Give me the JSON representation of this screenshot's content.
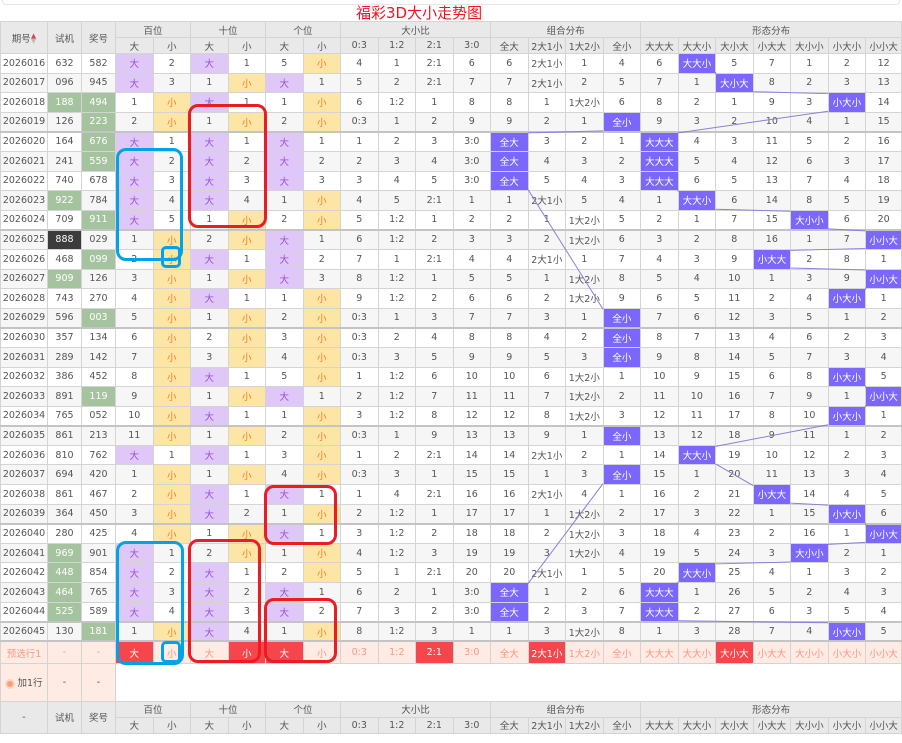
{
  "title": "福彩3D大小走势图",
  "header": {
    "period": "期号",
    "shiji": "试机",
    "jianghao": "奖号",
    "groups": [
      "百位",
      "十位",
      "个位",
      "大小比",
      "组合分布",
      "形态分布"
    ],
    "sub": [
      "大",
      "小",
      "大",
      "小",
      "大",
      "小",
      "0:3",
      "1:2",
      "2:1",
      "3:0",
      "全大",
      "2大1小",
      "1大2小",
      "全小",
      "大大大",
      "大大小",
      "大小大",
      "小大大",
      "大小小",
      "小大小",
      "小小大"
    ]
  },
  "footer_header": {
    "period": "-",
    "shiji": "试机",
    "jianghao": "奖号"
  },
  "colors": {
    "big": "#dfc7f8",
    "small": "#fde5a5",
    "hit": "#7b67fb",
    "pair": "#a6c39f",
    "triple": "#3c3c3c",
    "selected": "#f5474b",
    "title": "#f0141e"
  },
  "rows": [
    {
      "period": "2026016",
      "shiji": "632",
      "jianghao": "582",
      "shiji_mark": "",
      "jianghao_mark": "",
      "cells": [
        "大",
        "2",
        "大",
        "1",
        "5",
        "小",
        "4",
        "1",
        "2:1",
        "6",
        "6",
        "2大1小",
        "1",
        "4",
        "6",
        "大大小",
        "5",
        "7",
        "1",
        "2",
        "12"
      ]
    },
    {
      "period": "2026017",
      "shiji": "096",
      "jianghao": "945",
      "shiji_mark": "",
      "jianghao_mark": "",
      "cells": [
        "大",
        "3",
        "1",
        "小",
        "大",
        "1",
        "5",
        "2",
        "2:1",
        "7",
        "7",
        "2大1小",
        "2",
        "5",
        "7",
        "1",
        "大小大",
        "8",
        "2",
        "3",
        "13"
      ]
    },
    {
      "period": "2026018",
      "shiji": "188",
      "jianghao": "494",
      "shiji_mark": "pair",
      "jianghao_mark": "pair",
      "cells": [
        "1",
        "小",
        "大",
        "1",
        "1",
        "小",
        "6",
        "1:2",
        "1",
        "8",
        "8",
        "1",
        "1大2小",
        "6",
        "8",
        "2",
        "1",
        "9",
        "3",
        "小大小",
        "14"
      ]
    },
    {
      "period": "2026019",
      "shiji": "126",
      "jianghao": "223",
      "shiji_mark": "",
      "jianghao_mark": "pair",
      "cells": [
        "2",
        "小",
        "1",
        "小",
        "2",
        "小",
        "0:3",
        "1",
        "2",
        "9",
        "9",
        "2",
        "1",
        "全小",
        "9",
        "3",
        "2",
        "10",
        "4",
        "1",
        "15"
      ]
    },
    {
      "period": "2026020",
      "shiji": "164",
      "jianghao": "676",
      "shiji_mark": "",
      "jianghao_mark": "pair",
      "cells": [
        "大",
        "1",
        "大",
        "1",
        "大",
        "1",
        "1",
        "2",
        "3",
        "3:0",
        "全大",
        "3",
        "2",
        "1",
        "大大大",
        "4",
        "3",
        "11",
        "5",
        "2",
        "16"
      ]
    },
    {
      "period": "2026021",
      "shiji": "241",
      "jianghao": "559",
      "shiji_mark": "",
      "jianghao_mark": "pair",
      "cells": [
        "大",
        "2",
        "大",
        "2",
        "大",
        "2",
        "2",
        "3",
        "4",
        "3:0",
        "全大",
        "4",
        "3",
        "2",
        "大大大",
        "5",
        "4",
        "12",
        "6",
        "3",
        "17"
      ]
    },
    {
      "period": "2026022",
      "shiji": "740",
      "jianghao": "678",
      "shiji_mark": "",
      "jianghao_mark": "",
      "cells": [
        "大",
        "3",
        "大",
        "3",
        "大",
        "3",
        "3",
        "4",
        "5",
        "3:0",
        "全大",
        "5",
        "4",
        "3",
        "大大大",
        "6",
        "5",
        "13",
        "7",
        "4",
        "18"
      ]
    },
    {
      "period": "2026023",
      "shiji": "922",
      "jianghao": "784",
      "shiji_mark": "pair",
      "jianghao_mark": "",
      "cells": [
        "大",
        "4",
        "大",
        "4",
        "1",
        "小",
        "4",
        "5",
        "2:1",
        "1",
        "1",
        "2大1小",
        "5",
        "4",
        "1",
        "大大小",
        "6",
        "14",
        "8",
        "5",
        "19"
      ]
    },
    {
      "period": "2026024",
      "shiji": "709",
      "jianghao": "911",
      "shiji_mark": "",
      "jianghao_mark": "pair",
      "cells": [
        "大",
        "5",
        "1",
        "小",
        "2",
        "小",
        "5",
        "1:2",
        "1",
        "2",
        "2",
        "1",
        "1大2小",
        "5",
        "2",
        "1",
        "7",
        "15",
        "大小小",
        "6",
        "20"
      ]
    },
    {
      "period": "2026025",
      "shiji": "888",
      "jianghao": "029",
      "shiji_mark": "triple",
      "jianghao_mark": "",
      "cells": [
        "1",
        "小",
        "2",
        "小",
        "大",
        "1",
        "6",
        "1:2",
        "2",
        "3",
        "3",
        "2",
        "1大2小",
        "6",
        "3",
        "2",
        "8",
        "16",
        "1",
        "7",
        "小小大"
      ]
    },
    {
      "period": "2026026",
      "shiji": "468",
      "jianghao": "099",
      "shiji_mark": "",
      "jianghao_mark": "pair",
      "cells": [
        "2",
        "小",
        "大",
        "1",
        "大",
        "2",
        "7",
        "1",
        "2:1",
        "4",
        "4",
        "2大1小",
        "1",
        "7",
        "4",
        "3",
        "9",
        "小大大",
        "2",
        "8",
        "1"
      ]
    },
    {
      "period": "2026027",
      "shiji": "909",
      "jianghao": "126",
      "shiji_mark": "pair",
      "jianghao_mark": "",
      "cells": [
        "3",
        "小",
        "1",
        "小",
        "大",
        "3",
        "8",
        "1:2",
        "1",
        "5",
        "5",
        "1",
        "1大2小",
        "8",
        "5",
        "4",
        "10",
        "1",
        "3",
        "9",
        "小小大"
      ]
    },
    {
      "period": "2026028",
      "shiji": "743",
      "jianghao": "270",
      "shiji_mark": "",
      "jianghao_mark": "",
      "cells": [
        "4",
        "小",
        "大",
        "1",
        "1",
        "小",
        "9",
        "1:2",
        "2",
        "6",
        "6",
        "2",
        "1大2小",
        "9",
        "6",
        "5",
        "11",
        "2",
        "4",
        "小大小",
        "1"
      ]
    },
    {
      "period": "2026029",
      "shiji": "596",
      "jianghao": "003",
      "shiji_mark": "",
      "jianghao_mark": "pair",
      "cells": [
        "5",
        "小",
        "1",
        "小",
        "2",
        "小",
        "0:3",
        "1",
        "3",
        "7",
        "7",
        "3",
        "1",
        "全小",
        "7",
        "6",
        "12",
        "3",
        "5",
        "1",
        "2"
      ]
    },
    {
      "period": "2026030",
      "shiji": "357",
      "jianghao": "134",
      "shiji_mark": "",
      "jianghao_mark": "",
      "cells": [
        "6",
        "小",
        "2",
        "小",
        "3",
        "小",
        "0:3",
        "2",
        "4",
        "8",
        "8",
        "4",
        "2",
        "全小",
        "8",
        "7",
        "13",
        "4",
        "6",
        "2",
        "3"
      ]
    },
    {
      "period": "2026031",
      "shiji": "289",
      "jianghao": "142",
      "shiji_mark": "",
      "jianghao_mark": "",
      "cells": [
        "7",
        "小",
        "3",
        "小",
        "4",
        "小",
        "0:3",
        "3",
        "5",
        "9",
        "9",
        "5",
        "3",
        "全小",
        "9",
        "8",
        "14",
        "5",
        "7",
        "3",
        "4"
      ]
    },
    {
      "period": "2026032",
      "shiji": "386",
      "jianghao": "452",
      "shiji_mark": "",
      "jianghao_mark": "",
      "cells": [
        "8",
        "小",
        "大",
        "1",
        "5",
        "小",
        "1",
        "1:2",
        "6",
        "10",
        "10",
        "6",
        "1大2小",
        "1",
        "10",
        "9",
        "15",
        "6",
        "8",
        "小大小",
        "5"
      ]
    },
    {
      "period": "2026033",
      "shiji": "891",
      "jianghao": "119",
      "shiji_mark": "",
      "jianghao_mark": "pair",
      "cells": [
        "9",
        "小",
        "1",
        "小",
        "大",
        "1",
        "2",
        "1:2",
        "7",
        "11",
        "11",
        "7",
        "1大2小",
        "2",
        "11",
        "10",
        "16",
        "7",
        "9",
        "1",
        "小小大"
      ]
    },
    {
      "period": "2026034",
      "shiji": "765",
      "jianghao": "052",
      "shiji_mark": "",
      "jianghao_mark": "",
      "cells": [
        "10",
        "小",
        "大",
        "1",
        "1",
        "小",
        "3",
        "1:2",
        "8",
        "12",
        "12",
        "8",
        "1大2小",
        "3",
        "12",
        "11",
        "17",
        "8",
        "10",
        "小大小",
        "1"
      ]
    },
    {
      "period": "2026035",
      "shiji": "861",
      "jianghao": "213",
      "shiji_mark": "",
      "jianghao_mark": "",
      "cells": [
        "11",
        "小",
        "1",
        "小",
        "2",
        "小",
        "0:3",
        "1",
        "9",
        "13",
        "13",
        "9",
        "1",
        "全小",
        "13",
        "12",
        "18",
        "9",
        "11",
        "1",
        "2"
      ]
    },
    {
      "period": "2026036",
      "shiji": "810",
      "jianghao": "762",
      "shiji_mark": "",
      "jianghao_mark": "",
      "cells": [
        "大",
        "1",
        "大",
        "1",
        "3",
        "小",
        "1",
        "2",
        "2:1",
        "14",
        "14",
        "2大1小",
        "2",
        "1",
        "14",
        "大大小",
        "19",
        "10",
        "12",
        "2",
        "3"
      ]
    },
    {
      "period": "2026037",
      "shiji": "694",
      "jianghao": "420",
      "shiji_mark": "",
      "jianghao_mark": "",
      "cells": [
        "1",
        "小",
        "1",
        "小",
        "4",
        "小",
        "0:3",
        "3",
        "1",
        "15",
        "15",
        "1",
        "3",
        "全小",
        "15",
        "1",
        "20",
        "11",
        "13",
        "3",
        "4"
      ]
    },
    {
      "period": "2026038",
      "shiji": "861",
      "jianghao": "467",
      "shiji_mark": "",
      "jianghao_mark": "",
      "cells": [
        "2",
        "小",
        "大",
        "1",
        "大",
        "1",
        "1",
        "4",
        "2:1",
        "16",
        "16",
        "2大1小",
        "4",
        "1",
        "16",
        "2",
        "21",
        "小大大",
        "14",
        "4",
        "5"
      ]
    },
    {
      "period": "2026039",
      "shiji": "364",
      "jianghao": "450",
      "shiji_mark": "",
      "jianghao_mark": "",
      "cells": [
        "3",
        "小",
        "大",
        "2",
        "1",
        "小",
        "2",
        "1:2",
        "1",
        "17",
        "17",
        "1",
        "1大2小",
        "2",
        "17",
        "3",
        "22",
        "1",
        "15",
        "小大小",
        "6"
      ]
    },
    {
      "period": "2026040",
      "shiji": "280",
      "jianghao": "425",
      "shiji_mark": "",
      "jianghao_mark": "",
      "cells": [
        "4",
        "小",
        "1",
        "小",
        "大",
        "1",
        "3",
        "1:2",
        "2",
        "18",
        "18",
        "2",
        "1大2小",
        "3",
        "18",
        "4",
        "23",
        "2",
        "16",
        "1",
        "小小大"
      ]
    },
    {
      "period": "2026041",
      "shiji": "969",
      "jianghao": "901",
      "shiji_mark": "pair",
      "jianghao_mark": "",
      "cells": [
        "大",
        "1",
        "2",
        "小",
        "1",
        "小",
        "4",
        "1:2",
        "3",
        "19",
        "19",
        "3",
        "1大2小",
        "4",
        "19",
        "5",
        "24",
        "3",
        "大小小",
        "2",
        "1"
      ]
    },
    {
      "period": "2026042",
      "shiji": "448",
      "jianghao": "854",
      "shiji_mark": "pair",
      "jianghao_mark": "",
      "cells": [
        "大",
        "2",
        "大",
        "1",
        "2",
        "小",
        "5",
        "1",
        "2:1",
        "20",
        "20",
        "2大1小",
        "1",
        "5",
        "20",
        "大大小",
        "25",
        "4",
        "1",
        "3",
        "2"
      ]
    },
    {
      "period": "2026043",
      "shiji": "464",
      "jianghao": "765",
      "shiji_mark": "pair",
      "jianghao_mark": "",
      "cells": [
        "大",
        "3",
        "大",
        "2",
        "大",
        "1",
        "6",
        "2",
        "1",
        "3:0",
        "全大",
        "1",
        "2",
        "6",
        "大大大",
        "1",
        "26",
        "5",
        "2",
        "4",
        "3"
      ]
    },
    {
      "period": "2026044",
      "shiji": "525",
      "jianghao": "589",
      "shiji_mark": "pair",
      "jianghao_mark": "",
      "cells": [
        "大",
        "4",
        "大",
        "3",
        "大",
        "2",
        "7",
        "3",
        "2",
        "3:0",
        "全大",
        "2",
        "3",
        "7",
        "大大大",
        "2",
        "27",
        "6",
        "3",
        "5",
        "4"
      ]
    },
    {
      "period": "2026045",
      "shiji": "130",
      "jianghao": "181",
      "shiji_mark": "",
      "jianghao_mark": "pair",
      "cells": [
        "1",
        "小",
        "大",
        "4",
        "1",
        "小",
        "8",
        "1:2",
        "3",
        "1",
        "1",
        "3",
        "1大2小",
        "8",
        "1",
        "3",
        "28",
        "7",
        "4",
        "小大小",
        "5"
      ]
    }
  ],
  "preselect": {
    "label": "预选行1",
    "shiji": "-",
    "jianghao": "-",
    "cells": [
      "大",
      "小",
      "大",
      "小",
      "大",
      "小",
      "0:3",
      "1:2",
      "2:1",
      "3:0",
      "全大",
      "2大1小",
      "1大2小",
      "全小",
      "大大大",
      "大大小",
      "大小大",
      "小大大",
      "大小小",
      "小大小",
      "小小大"
    ],
    "selected": [
      true,
      false,
      false,
      true,
      true,
      false,
      false,
      false,
      true,
      false,
      false,
      true,
      false,
      false,
      false,
      false,
      true,
      false,
      false,
      false,
      false
    ]
  },
  "add_row": {
    "label": "加1行",
    "shiji": "-",
    "jianghao": "-",
    "icon": "add-circle-icon"
  }
}
